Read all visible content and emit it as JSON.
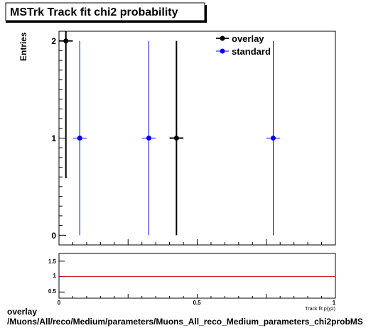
{
  "chart_data": {
    "type": "scatter",
    "title": "MSTrk Track fit chi2 probability",
    "ylabel": "Entries",
    "xlabel": "Track fit p(χ2)",
    "xlim": [
      0,
      1
    ],
    "ylim": [
      -0.1,
      2.1
    ],
    "yticks": [
      "0",
      "1",
      "2"
    ],
    "legend_position": "top-right",
    "series": [
      {
        "name": "overlay",
        "color": "#000000",
        "points": [
          {
            "x": 0.025,
            "y": 2,
            "xerr": 0.025,
            "yerr": [
              1.414,
              1.414
            ]
          },
          {
            "x": 0.425,
            "y": 1,
            "xerr": 0.025,
            "yerr": [
              1.0,
              1.0
            ]
          }
        ]
      },
      {
        "name": "standard",
        "color": "#0000ff",
        "points": [
          {
            "x": 0.075,
            "y": 1,
            "xerr": 0.025,
            "yerr": [
              1.0,
              1.0
            ]
          },
          {
            "x": 0.325,
            "y": 1,
            "xerr": 0.025,
            "yerr": [
              1.0,
              1.0
            ]
          },
          {
            "x": 0.775,
            "y": 1,
            "xerr": 0.025,
            "yerr": [
              1.0,
              1.0
            ]
          }
        ]
      }
    ],
    "ratio_panel": {
      "yticks": [
        "0.5",
        "1",
        "1.5"
      ],
      "ylim": [
        0.3,
        1.75
      ],
      "xticks": [
        "0",
        "0.5",
        "1"
      ],
      "reference_value": 1,
      "reference_color": "#cc0000"
    }
  },
  "footer": {
    "line1": "overlay",
    "line2": "/Muons/All/reco/Medium/parameters/Muons_All_reco_Medium_parameters_chi2probMS"
  }
}
